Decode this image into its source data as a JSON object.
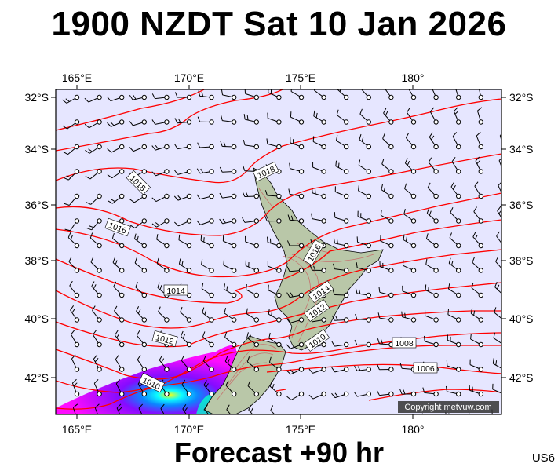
{
  "title": "1900 NZDT Sat 10 Jan 2026",
  "footer": "Forecast +90 hr",
  "code": "US6",
  "copyright": "Copyright metvuw.com",
  "axes": {
    "lon_labels": [
      "165°E",
      "170°E",
      "175°E",
      "180°"
    ],
    "lat_labels": [
      "32°S",
      "34°S",
      "36°S",
      "38°S",
      "40°S",
      "42°S"
    ]
  },
  "isobar_labels": [
    "1018",
    "1018",
    "1016",
    "1016",
    "1014",
    "1014",
    "1012",
    "1012",
    "1010",
    "1010",
    "1008",
    "1006"
  ],
  "colors": {
    "ocean": "#e6e6ff",
    "isobar": "#ff0000",
    "land": "#b9c7a8",
    "terrain_contour": "#c86464",
    "rain": [
      "#ff00ff",
      "#8000ff",
      "#0080ff",
      "#00ffff",
      "#ffff00",
      "#ff0000"
    ]
  }
}
